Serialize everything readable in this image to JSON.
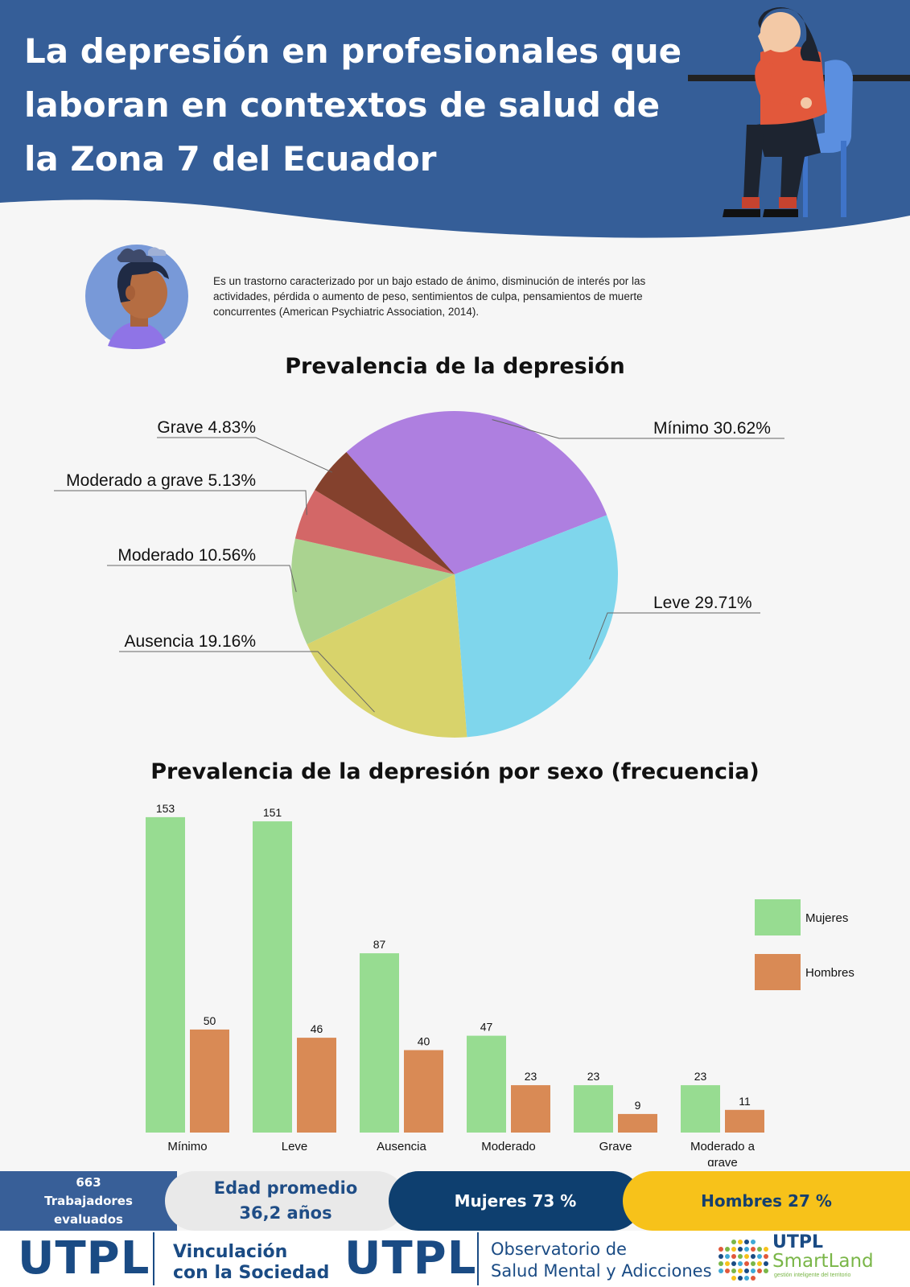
{
  "header": {
    "title": "La depresión en profesionales que laboran en contextos de salud de la Zona 7 del Ecuador"
  },
  "intro": {
    "definition": "Es un trastorno caracterizado por un bajo estado de ánimo, disminución de interés por las actividades, pérdida o aumento de peso, sentimientos de culpa, pensamientos de muerte concurrentes (American Psychiatric Association, 2014)."
  },
  "colors": {
    "header_blue": "#355e98",
    "minimo": "#ae7fe0",
    "leve": "#7fd6ec",
    "ausencia": "#d8d36b",
    "moderado": "#aad390",
    "moderado_grave": "#d36767",
    "grave": "#84412d",
    "mujeres": "#97dc91",
    "hombres": "#d98a55"
  },
  "chart_data": [
    {
      "type": "pie",
      "title": "Prevalencia de la depresión",
      "slices": [
        {
          "label": "Mínimo",
          "value": 30.62,
          "display": "Mínimo 30.62%",
          "color": "#ae7fe0"
        },
        {
          "label": "Leve",
          "value": 29.71,
          "display": "Leve 29.71%",
          "color": "#7fd6ec"
        },
        {
          "label": "Ausencia",
          "value": 19.16,
          "display": "Ausencia 19.16%",
          "color": "#d8d36b"
        },
        {
          "label": "Moderado",
          "value": 10.56,
          "display": "Moderado 10.56%",
          "color": "#aad390"
        },
        {
          "label": "Moderado a grave",
          "value": 5.13,
          "display": "Moderado a grave 5.13%",
          "color": "#d36767"
        },
        {
          "label": "Grave",
          "value": 4.83,
          "display": "Grave 4.83%",
          "color": "#84412d"
        }
      ]
    },
    {
      "type": "bar",
      "title": "Prevalencia de la depresión por sexo (frecuencia)",
      "categories": [
        "Mínimo",
        "Leve",
        "Ausencia",
        "Moderado",
        "Grave",
        "Moderado a grave"
      ],
      "category_lines": [
        [
          "Mínimo"
        ],
        [
          "Leve"
        ],
        [
          "Ausencia"
        ],
        [
          "Moderado"
        ],
        [
          "Grave"
        ],
        [
          "Moderado a",
          "grave"
        ]
      ],
      "series": [
        {
          "name": "Mujeres",
          "values": [
            153,
            151,
            87,
            47,
            23,
            23
          ],
          "color": "#97dc91"
        },
        {
          "name": "Hombres",
          "values": [
            50,
            46,
            40,
            23,
            9,
            11
          ],
          "color": "#d98a55"
        }
      ],
      "legend": "right",
      "ylim": [
        0,
        160
      ]
    }
  ],
  "stats": {
    "trabajadores_lines": [
      "663",
      "Trabajadores",
      "evaluados"
    ],
    "edad_lines": [
      "Edad promedio",
      "36,2 años"
    ],
    "mujeres": "Mujeres 73 %",
    "hombres": "Hombres 27 %"
  },
  "footer": {
    "utpl": "UTPL",
    "vinculacion_lines": [
      "Vinculación",
      "con la Sociedad"
    ],
    "observatorio_lines": [
      "Observatorio de",
      "Salud Mental y Adicciones"
    ],
    "smartland_top": "UTPL",
    "smartland_name": "SmartLand",
    "smartland_tag": "gestión inteligente del territorio"
  }
}
